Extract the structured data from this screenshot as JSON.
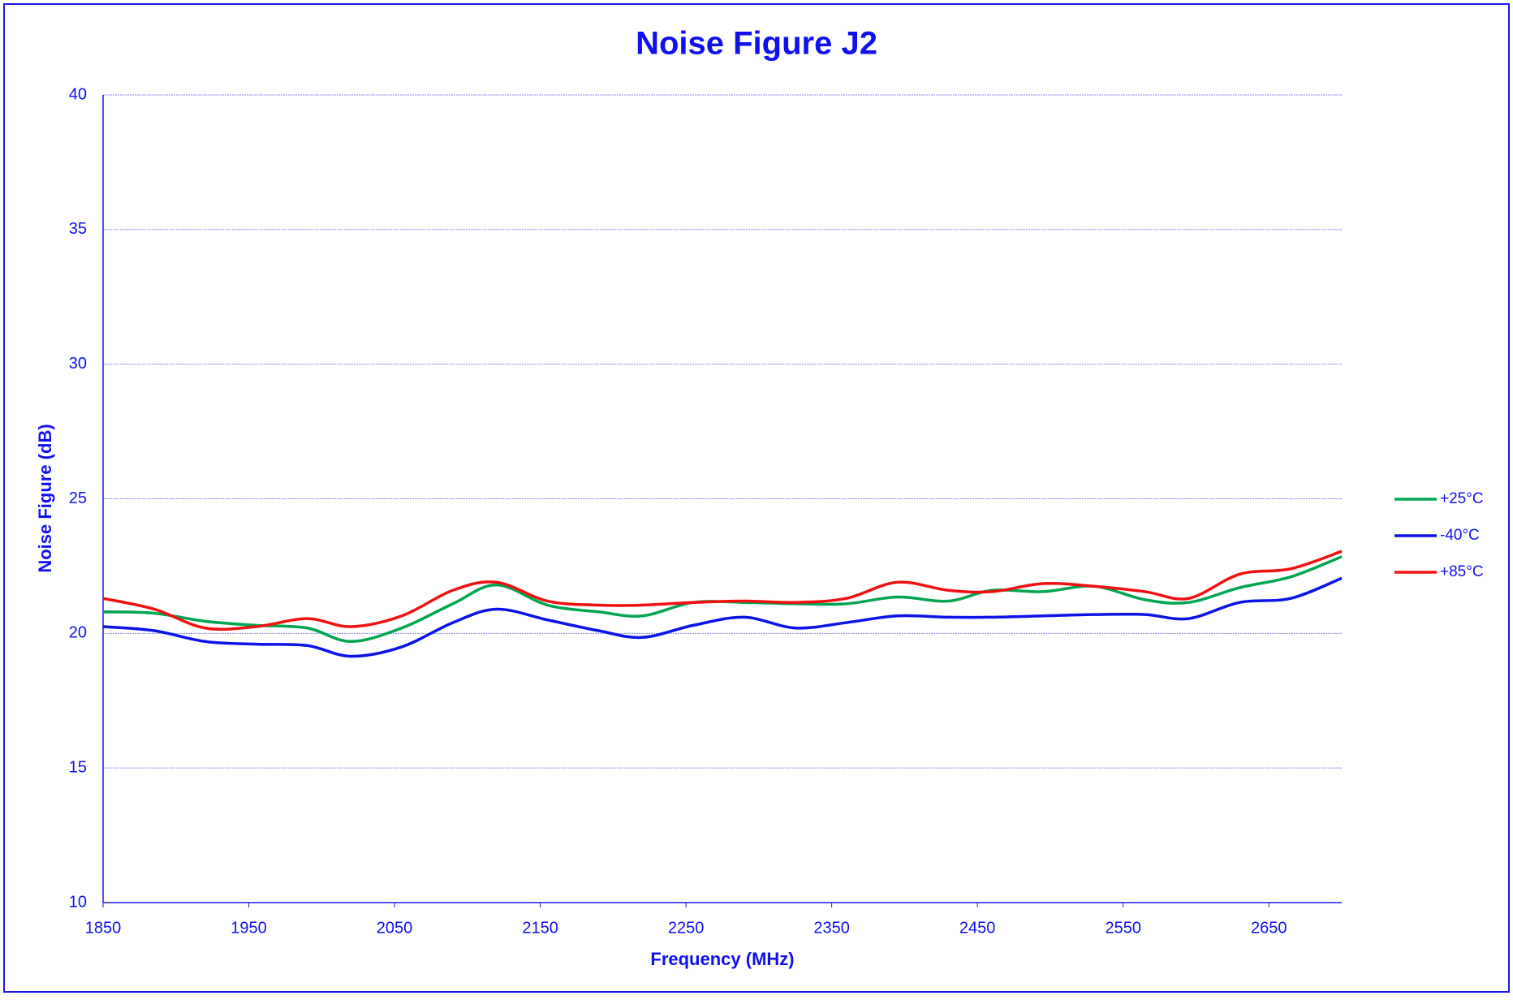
{
  "chart_data": {
    "type": "line",
    "title": "Noise Figure J2",
    "x_label": "Frequency (MHz)",
    "y_label": "Noise Figure (dB)",
    "x": [
      1850,
      1885,
      1920,
      1955,
      1990,
      2020,
      2055,
      2090,
      2120,
      2155,
      2190,
      2220,
      2255,
      2290,
      2325,
      2360,
      2395,
      2430,
      2460,
      2495,
      2530,
      2565,
      2595,
      2630,
      2665,
      2700
    ],
    "series": [
      {
        "name": "+25°C",
        "color": "#00a550",
        "values": [
          20.8,
          20.75,
          20.45,
          20.3,
          20.2,
          19.7,
          20.2,
          21.1,
          21.8,
          21.05,
          20.8,
          20.65,
          21.15,
          21.15,
          21.1,
          21.1,
          21.35,
          21.2,
          21.6,
          21.55,
          21.75,
          21.25,
          21.15,
          21.7,
          22.1,
          22.85
        ]
      },
      {
        "name": "-40°C",
        "color": "#0a14e6",
        "values": [
          20.25,
          20.1,
          19.7,
          19.6,
          19.55,
          19.15,
          19.5,
          20.4,
          20.9,
          20.5,
          20.1,
          19.85,
          20.3,
          20.6,
          20.2,
          20.4,
          20.65,
          20.6,
          20.6,
          20.65,
          20.7,
          20.7,
          20.55,
          21.15,
          21.3,
          22.05
        ]
      },
      {
        "name": "+85°C",
        "color": "#f01010",
        "values": [
          21.3,
          20.9,
          20.2,
          20.25,
          20.55,
          20.25,
          20.65,
          21.6,
          21.9,
          21.2,
          21.05,
          21.05,
          21.15,
          21.2,
          21.15,
          21.3,
          21.9,
          21.6,
          21.55,
          21.85,
          21.75,
          21.55,
          21.3,
          22.2,
          22.4,
          23.05
        ]
      }
    ],
    "xlim": [
      1850,
      2700
    ],
    "xticks": [
      1850,
      1950,
      2050,
      2150,
      2250,
      2350,
      2450,
      2550,
      2650
    ],
    "ylim": [
      10,
      40
    ],
    "yticks": [
      10,
      15,
      20,
      25,
      30,
      35,
      40
    ],
    "grid": true,
    "legend": "right"
  }
}
